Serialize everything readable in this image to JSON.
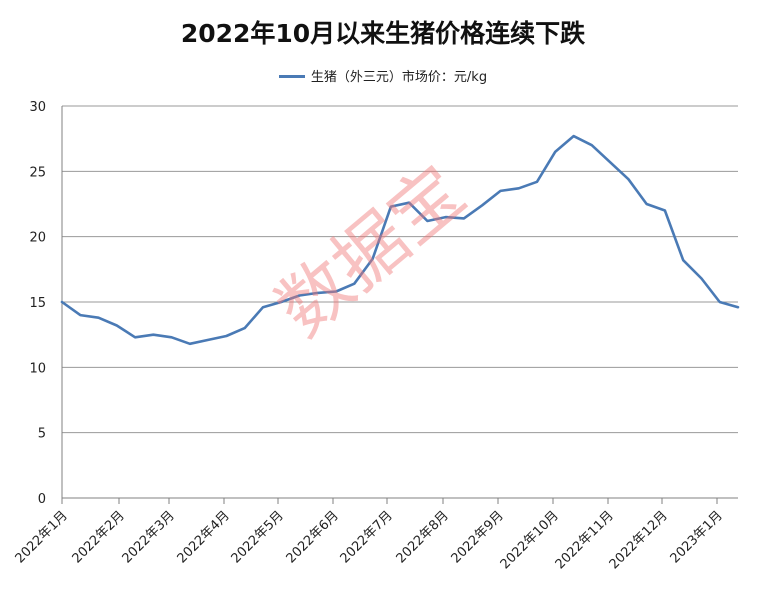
{
  "watermark": "数据宝",
  "chart_data": {
    "type": "line",
    "title": "2022年10月以来生猪价格连续下跌",
    "xlabel": "",
    "ylabel": "",
    "ylim": [
      0,
      30
    ],
    "yticks": [
      0,
      5,
      10,
      15,
      20,
      25,
      30
    ],
    "grid": true,
    "legend_position": "top",
    "month_labels": [
      "2022年1月",
      "2022年2月",
      "2022年3月",
      "2022年4月",
      "2022年5月",
      "2022年6月",
      "2022年7月",
      "2022年8月",
      "2022年9月",
      "2022年10月",
      "2022年11月",
      "2022年12月",
      "2023年1月"
    ],
    "series": [
      {
        "name": "生猪（外三元）市场价：元/kg",
        "color": "#4a7ab5",
        "values": [
          15.0,
          14.0,
          13.8,
          13.2,
          12.3,
          12.5,
          12.3,
          11.8,
          12.1,
          12.4,
          13.0,
          14.6,
          15.0,
          15.5,
          15.7,
          15.8,
          16.4,
          18.3,
          22.3,
          22.6,
          21.2,
          21.5,
          21.4,
          22.4,
          23.5,
          23.7,
          24.2,
          26.5,
          27.7,
          27.0,
          25.7,
          24.4,
          22.5,
          22.0,
          18.2,
          16.8,
          15.0,
          14.6
        ]
      }
    ]
  }
}
